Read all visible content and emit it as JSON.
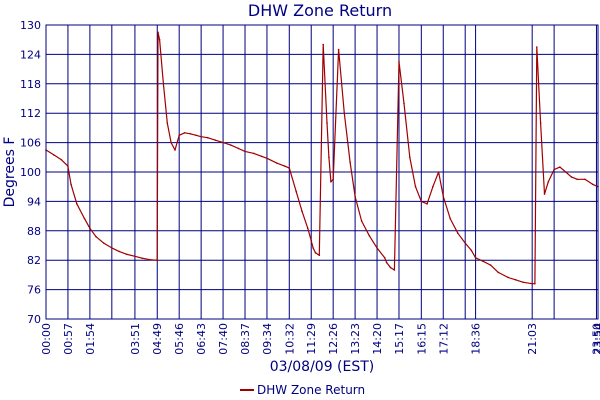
{
  "chart_data": {
    "type": "line",
    "title": "DHW Zone Return",
    "xlabel": "03/08/09 (EST)",
    "ylabel": "Degrees F",
    "ylim": [
      70,
      130
    ],
    "yticks": [
      "70",
      "76",
      "82",
      "88",
      "94",
      "100",
      "106",
      "112",
      "118",
      "124",
      "130"
    ],
    "xticks": [
      "00:00",
      "00:57",
      "01:54",
      "02:51",
      "03:51",
      "04:49",
      "05:46",
      "06:43",
      "07:40",
      "08:37",
      "09:34",
      "10:32",
      "11:29",
      "12:26",
      "13:23",
      "14:20",
      "15:17",
      "16:15",
      "17:12",
      "18:09",
      "18:36",
      "21:03",
      "22:00",
      "23:50",
      "23:54"
    ],
    "xtick_labels_shown": [
      "00:00",
      "00:57",
      "01:54",
      "03:51",
      "04:49",
      "05:46",
      "06:43",
      "07:40",
      "08:37",
      "09:34",
      "10:32",
      "11:29",
      "12:26",
      "13:23",
      "14:20",
      "15:17",
      "16:15",
      "17:12",
      "18:36",
      "21:03",
      "23:50",
      "23:54"
    ],
    "grid": true,
    "legend_position": "bottom-center",
    "colors": {
      "line": "#a00000",
      "grid": "#000080",
      "text": "#000080"
    },
    "series": [
      {
        "name": "DHW Zone Return",
        "x": [
          "00:00",
          "00:20",
          "00:40",
          "00:57",
          "01:05",
          "01:20",
          "01:40",
          "01:54",
          "02:10",
          "02:30",
          "02:51",
          "03:10",
          "03:30",
          "03:51",
          "04:10",
          "04:30",
          "04:49",
          "04:51",
          "04:55",
          "05:05",
          "05:15",
          "05:25",
          "05:35",
          "05:46",
          "06:00",
          "06:15",
          "06:30",
          "06:43",
          "07:00",
          "07:20",
          "07:40",
          "08:00",
          "08:20",
          "08:37",
          "09:00",
          "09:20",
          "09:34",
          "10:00",
          "10:20",
          "10:32",
          "10:50",
          "11:05",
          "11:20",
          "11:29",
          "11:34",
          "11:40",
          "11:50",
          "12:00",
          "12:10",
          "12:15",
          "12:20",
          "12:26",
          "12:40",
          "12:55",
          "13:10",
          "13:23",
          "13:40",
          "14:00",
          "14:20",
          "14:40",
          "14:45",
          "14:55",
          "15:05",
          "15:17",
          "15:30",
          "15:45",
          "16:00",
          "16:15",
          "16:30",
          "16:45",
          "17:00",
          "17:12",
          "17:30",
          "17:50",
          "18:09",
          "18:25",
          "18:36",
          "18:55",
          "19:15",
          "19:35",
          "20:00",
          "20:20",
          "20:40",
          "21:03",
          "21:10",
          "21:15",
          "21:25",
          "21:35",
          "21:45",
          "22:00",
          "22:15",
          "22:30",
          "22:45",
          "23:00",
          "23:20",
          "23:40",
          "23:54"
        ],
        "values": [
          104.5,
          103.5,
          102.5,
          101.2,
          97.5,
          93.5,
          90.5,
          88.5,
          86.8,
          85.5,
          84.5,
          83.8,
          83.2,
          82.8,
          82.4,
          82.1,
          82,
          128.5,
          127,
          118,
          110,
          106,
          104.5,
          107.5,
          108,
          107.8,
          107.5,
          107.2,
          107,
          106.5,
          106,
          105.5,
          104.8,
          104.2,
          103.8,
          103.2,
          102.8,
          101.8,
          101.2,
          100.8,
          96,
          92,
          88.5,
          86,
          84.5,
          83.5,
          83,
          126,
          110,
          103,
          98,
          98.5,
          125,
          112,
          102,
          95,
          90,
          87,
          84.5,
          82.5,
          81.5,
          80.5,
          80,
          122.5,
          114,
          103,
          97,
          94,
          93.5,
          97,
          100,
          95,
          90.5,
          87.5,
          85.5,
          84,
          82.5,
          81.8,
          81,
          79.5,
          78.5,
          78,
          77.5,
          77.2,
          77.2,
          125.5,
          110,
          95.5,
          98,
          100.5,
          101,
          100,
          99,
          98.5,
          98.5,
          97.5,
          97
        ]
      }
    ]
  }
}
